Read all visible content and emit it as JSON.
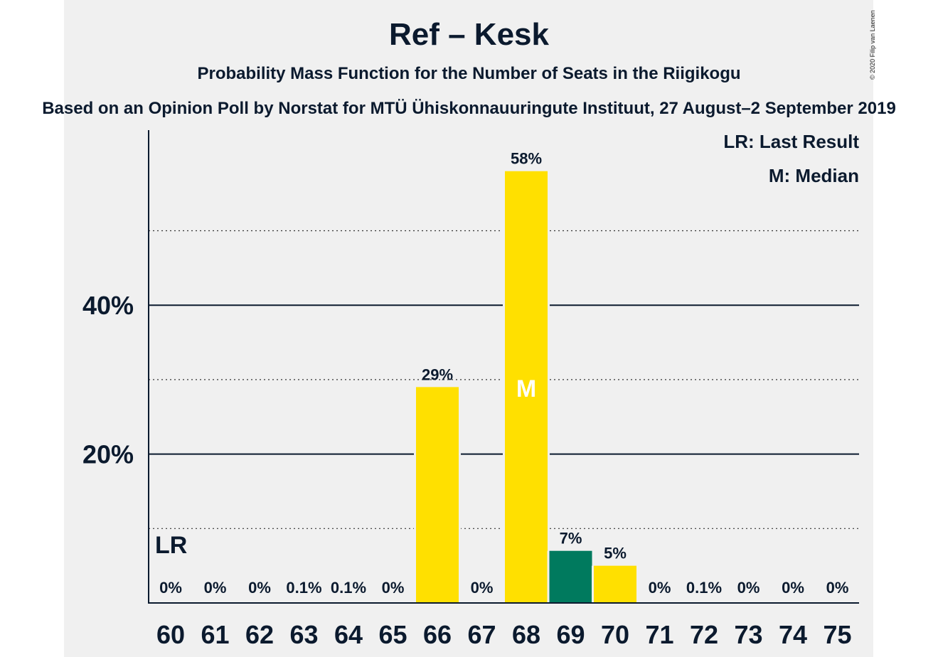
{
  "chart_data": {
    "type": "bar",
    "title": "Ref – Kesk",
    "subtitle": "Probability Mass Function for the Number of Seats in the Riigikogu",
    "source": "Based on an Opinion Poll by Norstat for MTÜ Ühiskonnauuringute Instituut, 27 August–2 September 2019",
    "copyright": "© 2020 Filip van Laenen",
    "categories": [
      "60",
      "61",
      "62",
      "63",
      "64",
      "65",
      "66",
      "67",
      "68",
      "69",
      "70",
      "71",
      "72",
      "73",
      "74",
      "75"
    ],
    "values": [
      0,
      0,
      0,
      0.1,
      0.1,
      0,
      29,
      0,
      58,
      7,
      5,
      0,
      0.1,
      0,
      0,
      0
    ],
    "value_labels": [
      "0%",
      "0%",
      "0%",
      "0.1%",
      "0.1%",
      "0%",
      "29%",
      "0%",
      "58%",
      "7%",
      "5%",
      "0%",
      "0.1%",
      "0%",
      "0%",
      "0%"
    ],
    "bar_colors": [
      "#ffe000",
      "#ffe000",
      "#ffe000",
      "#ffe000",
      "#ffe000",
      "#ffe000",
      "#ffe000",
      "#ffe000",
      "#ffe000",
      "#007a5e",
      "#ffe000",
      "#ffe000",
      "#ffe000",
      "#ffe000",
      "#ffe000",
      "#ffe000"
    ],
    "yticks": [
      {
        "value": 20,
        "label": "20%"
      },
      {
        "value": 40,
        "label": "40%"
      }
    ],
    "minor_gridlines": [
      10,
      30,
      50
    ],
    "ylim": [
      0,
      63
    ],
    "last_result": {
      "seat": "60",
      "label": "LR"
    },
    "median": {
      "seat": "68",
      "label": "M"
    },
    "legend": [
      "LR: Last Result",
      "M: Median"
    ],
    "legend_position": "top-right"
  }
}
